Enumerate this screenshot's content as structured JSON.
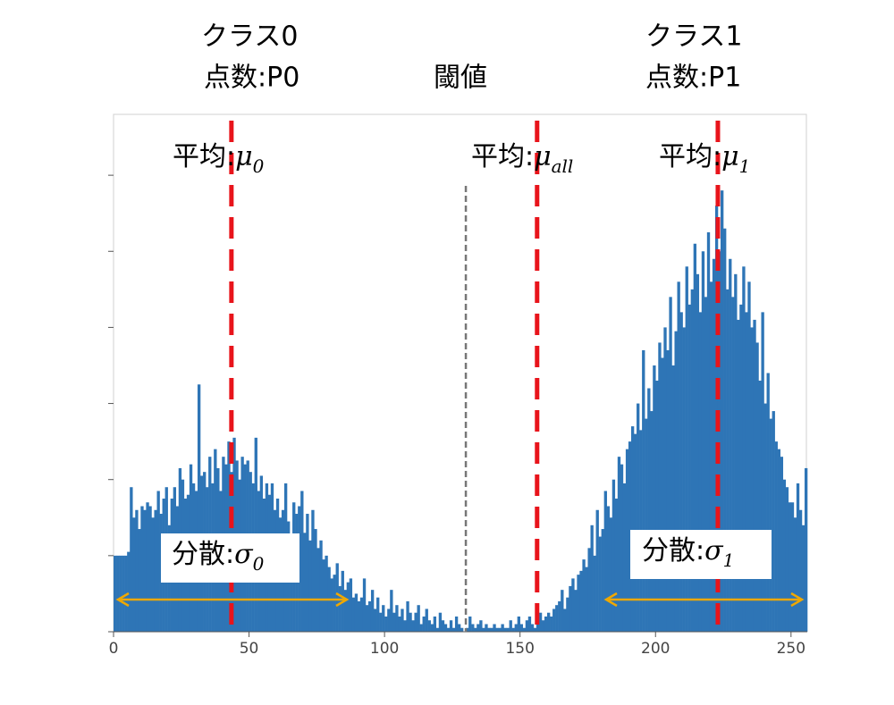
{
  "chart_data": {
    "type": "histogram",
    "color": "#2e75b6",
    "bins": [
      0,
      1,
      2,
      3,
      4,
      5,
      6,
      7,
      8,
      9,
      10,
      11,
      12,
      13,
      14,
      15,
      16,
      17,
      18,
      19,
      20,
      21,
      22,
      23,
      24,
      25,
      26,
      27,
      28,
      29,
      30,
      31,
      32,
      33,
      34,
      35,
      36,
      37,
      38,
      39,
      40,
      41,
      42,
      43,
      44,
      45,
      46,
      47,
      48,
      49,
      50,
      51,
      52,
      53,
      54,
      55,
      56,
      57,
      58,
      59,
      60,
      61,
      62,
      63,
      64,
      65,
      66,
      67,
      68,
      69,
      70,
      71,
      72,
      73,
      74,
      75,
      76,
      77,
      78,
      79,
      80,
      81,
      82,
      83,
      84,
      85,
      86,
      87,
      88,
      89,
      90,
      91,
      92,
      93,
      94,
      95,
      96,
      97,
      98,
      99,
      100,
      101,
      102,
      103,
      104,
      105,
      106,
      107,
      108,
      109,
      110,
      111,
      112,
      113,
      114,
      115,
      116,
      117,
      118,
      119,
      120,
      121,
      122,
      123,
      124,
      125,
      126,
      127,
      128,
      129,
      130,
      131,
      132,
      133,
      134,
      135,
      136,
      137,
      138,
      139,
      140,
      141,
      142,
      143,
      144,
      145,
      146,
      147,
      148,
      149,
      150,
      151,
      152,
      153,
      154,
      155,
      156,
      157,
      158,
      159,
      160,
      161,
      162,
      163,
      164,
      165,
      166,
      167,
      168,
      169,
      170,
      171,
      172,
      173,
      174,
      175,
      176,
      177,
      178,
      179,
      180,
      181,
      182,
      183,
      184,
      185,
      186,
      187,
      188,
      189,
      190,
      191,
      192,
      193,
      194,
      195,
      196,
      197,
      198,
      199,
      200,
      201,
      202,
      203,
      204,
      205,
      206,
      207,
      208,
      209,
      210,
      211,
      212,
      213,
      214,
      215,
      216,
      217,
      218,
      219,
      220,
      221,
      222,
      223,
      224,
      225,
      226,
      227,
      228,
      229,
      230,
      231,
      232,
      233,
      234,
      235,
      236,
      237,
      238,
      239,
      240,
      241,
      242,
      243,
      244,
      245,
      246,
      247,
      248,
      249,
      250,
      251,
      252,
      253,
      254,
      255,
      256
    ],
    "values": [
      100,
      100,
      100,
      100,
      100,
      105,
      190,
      150,
      160,
      135,
      165,
      160,
      170,
      165,
      150,
      160,
      185,
      155,
      175,
      190,
      140,
      175,
      190,
      165,
      215,
      200,
      175,
      180,
      220,
      195,
      185,
      325,
      205,
      210,
      190,
      230,
      195,
      240,
      215,
      185,
      230,
      220,
      250,
      210,
      255,
      225,
      200,
      230,
      220,
      225,
      210,
      195,
      255,
      185,
      205,
      175,
      195,
      180,
      195,
      160,
      175,
      150,
      160,
      195,
      145,
      110,
      170,
      155,
      165,
      185,
      130,
      155,
      120,
      160,
      135,
      110,
      120,
      95,
      100,
      85,
      70,
      75,
      90,
      60,
      80,
      55,
      65,
      70,
      45,
      50,
      40,
      45,
      70,
      35,
      40,
      55,
      30,
      45,
      25,
      35,
      20,
      30,
      55,
      25,
      35,
      20,
      30,
      15,
      40,
      25,
      15,
      25,
      35,
      10,
      20,
      30,
      15,
      10,
      20,
      5,
      25,
      15,
      10,
      5,
      15,
      5,
      20,
      10,
      5,
      0,
      5,
      20,
      10,
      5,
      10,
      15,
      5,
      10,
      5,
      5,
      10,
      5,
      5,
      10,
      5,
      5,
      15,
      5,
      10,
      20,
      10,
      5,
      15,
      20,
      10,
      5,
      20,
      25,
      15,
      20,
      25,
      20,
      30,
      35,
      40,
      55,
      30,
      45,
      60,
      70,
      55,
      75,
      80,
      95,
      85,
      110,
      140,
      100,
      160,
      125,
      135,
      185,
      165,
      150,
      200,
      175,
      230,
      220,
      195,
      240,
      250,
      270,
      260,
      300,
      265,
      370,
      280,
      320,
      290,
      350,
      330,
      380,
      360,
      400,
      370,
      440,
      350,
      395,
      460,
      420,
      400,
      480,
      430,
      450,
      510,
      470,
      420,
      500,
      440,
      525,
      460,
      490,
      560,
      500,
      580,
      530,
      450,
      490,
      440,
      470,
      410,
      430,
      480,
      420,
      460,
      400,
      410,
      380,
      330,
      420,
      300,
      340,
      280,
      290,
      250,
      240,
      230,
      200,
      190,
      170,
      170,
      150,
      195,
      160,
      140,
      215
    ],
    "xlim": [
      0,
      256
    ],
    "xticks": [
      0,
      50,
      100,
      150,
      200,
      250
    ],
    "ylim": [
      0,
      680
    ],
    "yticks": [
      0,
      100,
      200,
      300,
      400,
      500,
      600
    ],
    "classes": [
      {
        "name": "クラス0",
        "count": "点数:P0"
      },
      {
        "name": "クラス1",
        "count": "点数:P1"
      }
    ],
    "threshold": {
      "label": "閾値",
      "x": 130
    },
    "means": [
      {
        "label": "平均:",
        "symbol": "μ",
        "sub": "0",
        "x": 43.5
      },
      {
        "label": "平均:",
        "symbol": "μ",
        "sub": "all",
        "x": 156.3
      },
      {
        "label": "平均:",
        "symbol": "μ",
        "sub": "1",
        "x": 223
      }
    ],
    "variances": [
      {
        "label": "分散:",
        "symbol": "σ",
        "sub": "0"
      },
      {
        "label": "分散:",
        "symbol": "σ",
        "sub": "1"
      }
    ]
  }
}
